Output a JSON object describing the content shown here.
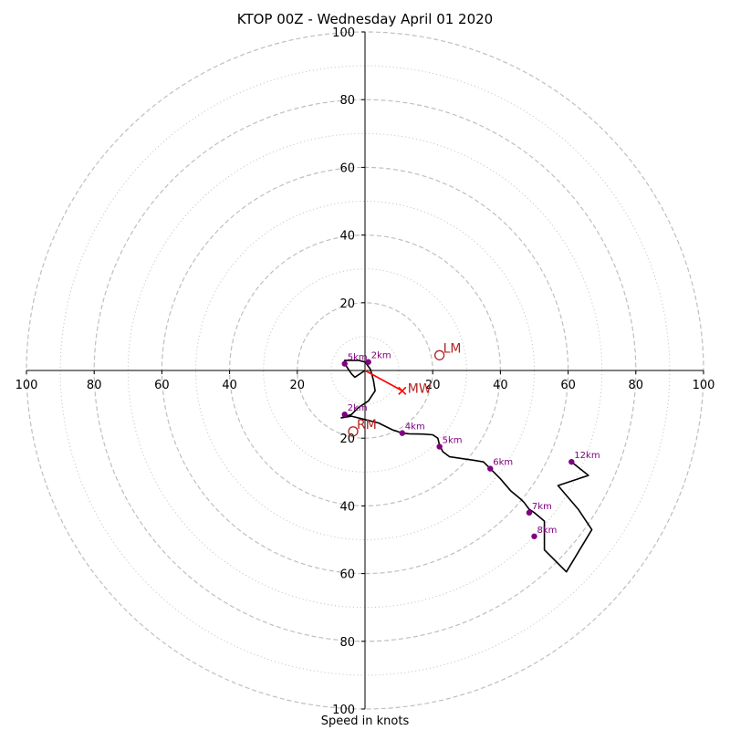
{
  "title": "KTOP 00Z - Wednesday April 01 2020",
  "chart_data": {
    "type": "scatter",
    "subtype": "hodograph",
    "title": "KTOP 00Z - Wednesday April 01 2020",
    "xlabel": "Speed in knots",
    "ylabel": "",
    "xlim": [
      -100,
      100
    ],
    "ylim": [
      -100,
      100
    ],
    "rings_major": [
      20,
      40,
      60,
      80,
      100
    ],
    "rings_minor": [
      10,
      30,
      50,
      70,
      90
    ],
    "tick_values": [
      20,
      40,
      60,
      80,
      100
    ],
    "grid": true,
    "colors": {
      "trace": "#000000",
      "height_marker": "#800080",
      "storm_motion": "#b22222",
      "mean_wind": "#ff0000",
      "grid": "#bfbfbf"
    },
    "trace": [
      [
        0,
        0
      ],
      [
        -3,
        -2
      ],
      [
        -4,
        -1
      ],
      [
        -6,
        2
      ],
      [
        -6,
        3
      ],
      [
        -4,
        3
      ],
      [
        -2,
        3
      ],
      [
        0,
        2.5
      ],
      [
        1.5,
        0.5
      ],
      [
        2,
        -1
      ],
      [
        2.5,
        -3
      ],
      [
        3,
        -6
      ],
      [
        1,
        -9
      ],
      [
        -2,
        -11
      ],
      [
        -4,
        -13
      ],
      [
        -7,
        -14
      ],
      [
        -4,
        -13.5
      ],
      [
        0,
        -14.5
      ],
      [
        4,
        -15.5
      ],
      [
        8,
        -17.5
      ],
      [
        11,
        -18.5
      ],
      [
        13,
        -18.7
      ],
      [
        17,
        -18.8
      ],
      [
        20,
        -19
      ],
      [
        21.5,
        -20
      ],
      [
        22,
        -22
      ],
      [
        23,
        -24
      ],
      [
        25,
        -25.5
      ],
      [
        32,
        -26.5
      ],
      [
        35,
        -27
      ],
      [
        37,
        -29
      ],
      [
        40,
        -32
      ],
      [
        43,
        -35.5
      ],
      [
        46,
        -38
      ],
      [
        47,
        -39
      ],
      [
        48.5,
        -41
      ],
      [
        50,
        -42
      ],
      [
        53,
        -44.5
      ],
      [
        53,
        -49
      ],
      [
        53,
        -53
      ],
      [
        58,
        -58
      ],
      [
        59.5,
        -59.5
      ],
      [
        67,
        -47
      ],
      [
        63,
        -41
      ],
      [
        57,
        -34
      ],
      [
        63,
        -32
      ],
      [
        66,
        -31
      ],
      [
        61,
        -27
      ]
    ],
    "height_points": [
      {
        "label": "2km",
        "x": 1,
        "y": 2.5
      },
      {
        "label": "5km",
        "x": -6,
        "y": 2
      },
      {
        "label": "2km",
        "x": -6,
        "y": -13
      },
      {
        "label": "4km",
        "x": 11,
        "y": -18.5
      },
      {
        "label": "5km",
        "x": 22,
        "y": -22.5
      },
      {
        "label": "6km",
        "x": 37,
        "y": -29
      },
      {
        "label": "7km",
        "x": 48.5,
        "y": -42
      },
      {
        "label": "8km",
        "x": 50,
        "y": -49
      },
      {
        "label": "12km",
        "x": 61,
        "y": -27
      }
    ],
    "storm_motion": [
      {
        "label": "LM",
        "x": 22,
        "y": 4.5
      },
      {
        "label": "RM",
        "x": -3.5,
        "y": -18
      }
    ],
    "mean_wind": {
      "label": "MW",
      "x": 11,
      "y": -6
    },
    "shear_vector": {
      "from": [
        0,
        0
      ],
      "to": [
        11,
        -6
      ]
    }
  }
}
